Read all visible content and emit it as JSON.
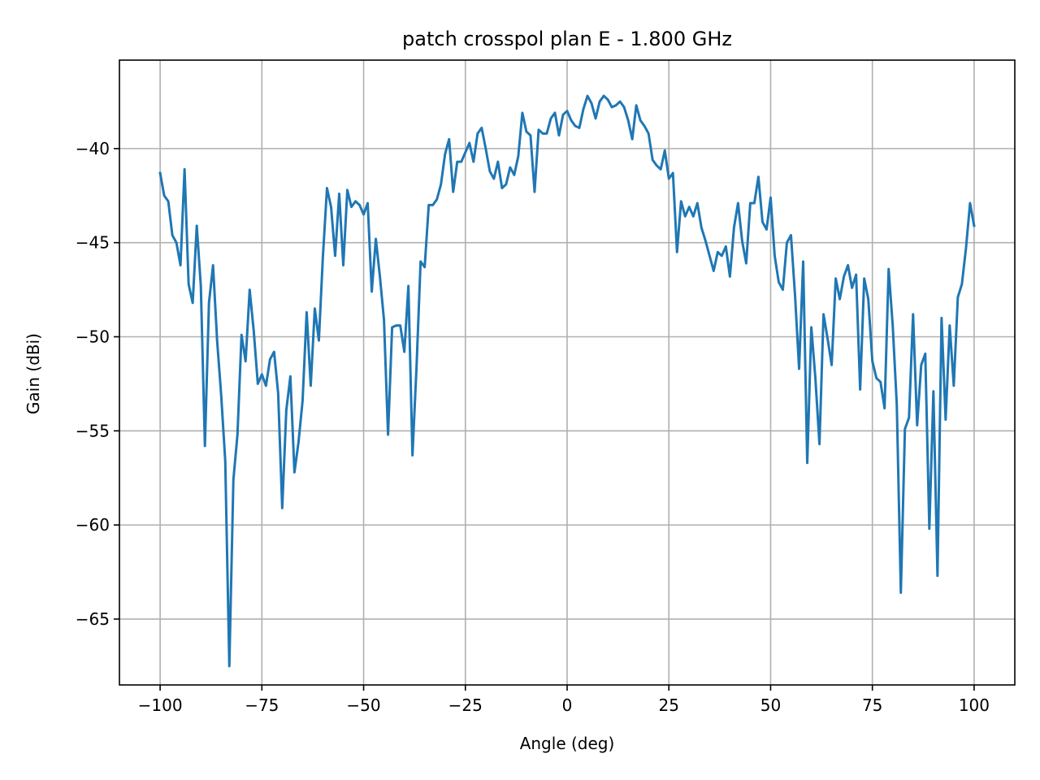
{
  "chart_data": {
    "type": "line",
    "title": "patch crosspol plan E - 1.800 GHz",
    "xlabel": "Angle (deg)",
    "ylabel": "Gain (dBi)",
    "xlim": [
      -110,
      110
    ],
    "ylim": [
      -68.5,
      -35.3
    ],
    "xticks": [
      -100,
      -75,
      -50,
      -25,
      0,
      25,
      50,
      75,
      100
    ],
    "xtick_labels": [
      "−100",
      "−75",
      "−50",
      "−25",
      "0",
      "25",
      "50",
      "75",
      "100"
    ],
    "yticks": [
      -40,
      -45,
      -50,
      -55,
      -60,
      -65
    ],
    "ytick_labels": [
      "−40",
      "−45",
      "−50",
      "−55",
      "−60",
      "−65"
    ],
    "grid": true,
    "line_color": "#1f77b4",
    "series": [
      {
        "x": [
          -100,
          -99,
          -98,
          -97,
          -96,
          -95,
          -94,
          -93,
          -92,
          -91,
          -90,
          -89,
          -88,
          -87,
          -86,
          -85,
          -84,
          -83,
          -82,
          -81,
          -80,
          -79,
          -78,
          -77,
          -76,
          -75,
          -74,
          -73,
          -72,
          -71,
          -70,
          -69,
          -68,
          -67,
          -66,
          -65,
          -64,
          -63,
          -62,
          -61,
          -60,
          -59,
          -58,
          -57,
          -56,
          -55,
          -54,
          -53,
          -52,
          -51,
          -50,
          -49,
          -48,
          -47,
          -46,
          -45,
          -44,
          -43,
          -42,
          -41,
          -40,
          -39,
          -38,
          -37,
          -36,
          -35,
          -34,
          -33,
          -32,
          -31,
          -30,
          -29,
          -28,
          -27,
          -26,
          -25,
          -24,
          -23,
          -22,
          -21,
          -20,
          -19,
          -18,
          -17,
          -16,
          -15,
          -14,
          -13,
          -12,
          -11,
          -10,
          -9,
          -8,
          -7,
          -6,
          -5,
          -4,
          -3,
          -2,
          -1,
          0,
          1,
          2,
          3,
          4,
          5,
          6,
          7,
          8,
          9,
          10,
          11,
          12,
          13,
          14,
          15,
          16,
          17,
          18,
          19,
          20,
          21,
          22,
          23,
          24,
          25,
          26,
          27,
          28,
          29,
          30,
          31,
          32,
          33,
          34,
          35,
          36,
          37,
          38,
          39,
          40,
          41,
          42,
          43,
          44,
          45,
          46,
          47,
          48,
          49,
          50,
          51,
          52,
          53,
          54,
          55,
          56,
          57,
          58,
          59,
          60,
          61,
          62,
          63,
          64,
          65,
          66,
          67,
          68,
          69,
          70,
          71,
          72,
          73,
          74,
          75,
          76,
          77,
          78,
          79,
          80,
          81,
          82,
          83,
          84,
          85,
          86,
          87,
          88,
          89,
          90,
          91,
          92,
          93,
          94,
          95,
          96,
          97,
          98,
          99,
          100
        ],
        "y": [
          -41.3,
          -42.5,
          -42.8,
          -44.6,
          -45.0,
          -46.2,
          -41.1,
          -47.2,
          -48.2,
          -44.1,
          -47.3,
          -55.8,
          -48.2,
          -46.2,
          -50.2,
          -53.1,
          -56.6,
          -67.5,
          -57.6,
          -55.2,
          -49.9,
          -51.3,
          -47.5,
          -49.7,
          -52.5,
          -52.0,
          -52.6,
          -51.2,
          -50.8,
          -53.0,
          -59.1,
          -53.9,
          -52.1,
          -57.2,
          -55.6,
          -53.4,
          -48.7,
          -52.6,
          -48.5,
          -50.2,
          -45.7,
          -42.1,
          -43.1,
          -45.7,
          -42.4,
          -46.2,
          -42.2,
          -43.1,
          -42.8,
          -43.0,
          -43.5,
          -42.9,
          -47.6,
          -44.8,
          -46.8,
          -49.1,
          -55.2,
          -49.5,
          -49.4,
          -49.4,
          -50.8,
          -47.3,
          -56.3,
          -51.6,
          -46.0,
          -46.3,
          -43.0,
          -43.0,
          -42.7,
          -41.9,
          -40.3,
          -39.5,
          -42.3,
          -40.7,
          -40.7,
          -40.2,
          -39.7,
          -40.7,
          -39.2,
          -38.9,
          -40.0,
          -41.2,
          -41.6,
          -40.7,
          -42.1,
          -41.9,
          -41.0,
          -41.4,
          -40.4,
          -38.1,
          -39.1,
          -39.3,
          -42.3,
          -39.0,
          -39.2,
          -39.2,
          -38.4,
          -38.1,
          -39.3,
          -38.2,
          -38.0,
          -38.5,
          -38.8,
          -38.9,
          -37.9,
          -37.2,
          -37.6,
          -38.4,
          -37.5,
          -37.2,
          -37.4,
          -37.8,
          -37.7,
          -37.5,
          -37.8,
          -38.5,
          -39.5,
          -37.7,
          -38.5,
          -38.8,
          -39.2,
          -40.6,
          -40.9,
          -41.1,
          -40.1,
          -41.6,
          -41.3,
          -45.5,
          -42.8,
          -43.6,
          -43.1,
          -43.6,
          -42.9,
          -44.2,
          -44.9,
          -45.7,
          -46.5,
          -45.5,
          -45.7,
          -45.2,
          -46.8,
          -44.2,
          -42.9,
          -44.9,
          -46.1,
          -42.9,
          -42.9,
          -41.5,
          -43.9,
          -44.3,
          -42.6,
          -45.7,
          -47.1,
          -47.5,
          -45.0,
          -44.6,
          -47.8,
          -51.7,
          -46.0,
          -56.7,
          -49.5,
          -52.2,
          -55.7,
          -48.8,
          -50.1,
          -51.5,
          -46.9,
          -48.0,
          -46.8,
          -46.2,
          -47.4,
          -46.7,
          -52.8,
          -46.9,
          -48.0,
          -51.3,
          -52.2,
          -52.4,
          -53.8,
          -46.4,
          -49.4,
          -53.6,
          -63.6,
          -54.9,
          -54.3,
          -48.8,
          -54.7,
          -51.5,
          -50.9,
          -60.2,
          -52.9,
          -62.7,
          -49.0,
          -54.4,
          -49.4,
          -52.6,
          -47.9,
          -47.2,
          -45.3,
          -42.9,
          -44.1
        ]
      }
    ]
  }
}
